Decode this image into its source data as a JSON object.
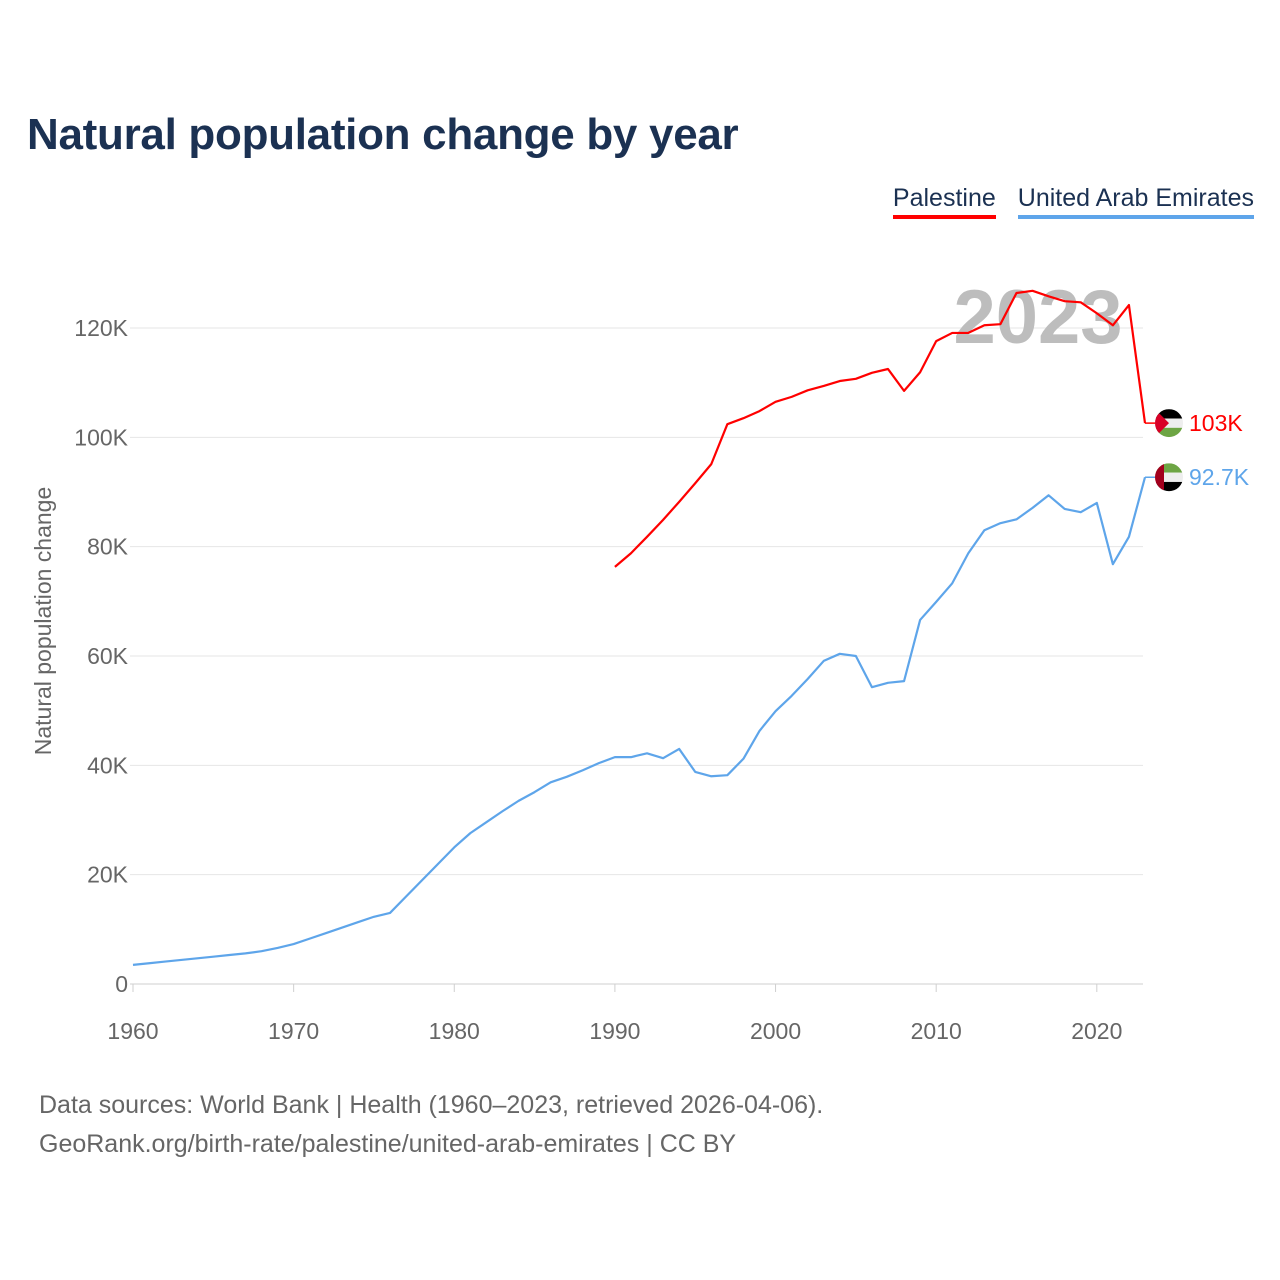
{
  "title": "Natural population change by year",
  "footer": {
    "line1": "Data sources: World Bank | Health (1960–2023, retrieved 2026-04-06).",
    "line2": "GeoRank.org/birth-rate/palestine/united-arab-emirates | CC BY"
  },
  "chart_data": {
    "type": "line",
    "title": "Natural population change by year",
    "xlabel": "",
    "ylabel": "Natural population change",
    "xlim": [
      1960,
      2023
    ],
    "ylim": [
      0,
      120000
    ],
    "xticks": [
      "1960",
      "1970",
      "1980",
      "1990",
      "2000",
      "2010",
      "2020"
    ],
    "yticks": [
      "0",
      "20K",
      "40K",
      "60K",
      "80K",
      "100K",
      "120K"
    ],
    "year_watermark": "2023",
    "legend_position": "top-right",
    "grid": true,
    "series": [
      {
        "name": "Palestine",
        "color": "#ff0000",
        "end_label": "103K",
        "flag": "palestine-flag",
        "start_year": 1990,
        "values": [
          76300,
          78800,
          81800,
          84900,
          88200,
          91600,
          95100,
          102400,
          103500,
          104800,
          106500,
          107400,
          108600,
          109400,
          110300,
          110700,
          111800,
          112500,
          108500,
          111900,
          117600,
          119100,
          119100,
          120500,
          120700,
          126400,
          126800,
          125800,
          124900,
          124700,
          122700,
          120500,
          124200,
          102600
        ]
      },
      {
        "name": "United Arab Emirates",
        "color": "#5ea5ea",
        "end_label": "92.7K",
        "flag": "uae-flag",
        "start_year": 1960,
        "values": [
          3500,
          3800,
          4100,
          4400,
          4700,
          5000,
          5300,
          5600,
          6000,
          6600,
          7300,
          8300,
          9300,
          10300,
          11300,
          12300,
          13000,
          16000,
          19000,
          22000,
          25000,
          27600,
          29600,
          31600,
          33500,
          35100,
          36900,
          37900,
          39100,
          40400,
          41500,
          41500,
          42200,
          41300,
          43000,
          38800,
          38000,
          38200,
          41200,
          46300,
          49900,
          52700,
          55800,
          59100,
          60400,
          60000,
          54300,
          55100,
          55400,
          66600,
          69900,
          73300,
          78800,
          83000,
          84300,
          85000,
          87100,
          89400,
          86900,
          86300,
          88000,
          76800,
          81800,
          92700
        ]
      }
    ]
  }
}
